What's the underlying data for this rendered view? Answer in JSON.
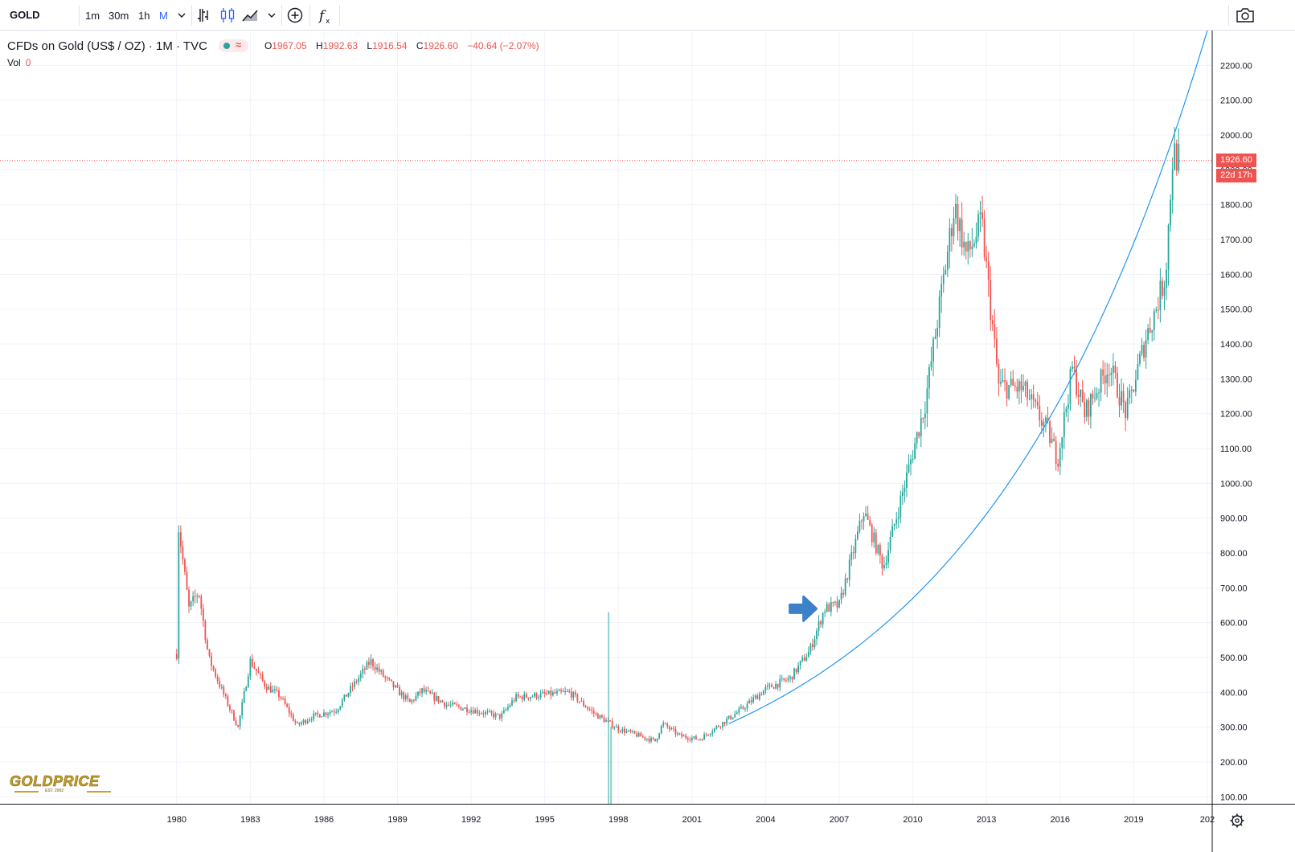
{
  "toolbar": {
    "symbol": "GOLD",
    "intervals": [
      "1m",
      "30m",
      "1h",
      "M"
    ],
    "active_interval": "M",
    "icons": [
      "bar-chart-icon",
      "candlestick-icon",
      "area-chart-icon",
      "add-compare-icon",
      "indicators-icon",
      "camera-icon"
    ]
  },
  "legend": {
    "title": "CFDs on Gold (US$ / OZ) · 1M · TVC",
    "ohlc": [
      {
        "k": "O",
        "v": "1967.05"
      },
      {
        "k": "H",
        "v": "1992.63"
      },
      {
        "k": "L",
        "v": "1916.54"
      },
      {
        "k": "C",
        "v": "1926.60"
      }
    ],
    "change": "−40.64 (−2.07%)",
    "vol_label": "Vol",
    "vol_value": "0"
  },
  "price_tag": {
    "price": "1926.60",
    "countdown": "22d 17h"
  },
  "logo": {
    "text": "GOLDPRICE",
    "est": "EST. 2002"
  },
  "colors": {
    "up": "#26a69a",
    "down": "#ef5350",
    "curve": "#2196f3",
    "arrow": "#3d82c9",
    "grid": "#f0f3fa"
  },
  "chart_data": {
    "type": "candlestick",
    "title": "CFDs on Gold (US$ / OZ) · 1M · TVC",
    "x_tick_labels": [
      "1980",
      "1983",
      "1986",
      "1989",
      "1992",
      "1995",
      "1998",
      "2001",
      "2004",
      "2007",
      "2010",
      "2013",
      "2016",
      "2019",
      "202"
    ],
    "y_tick_labels": [
      "100.00",
      "200.00",
      "300.00",
      "400.00",
      "500.00",
      "600.00",
      "700.00",
      "800.00",
      "900.00",
      "1000.00",
      "1100.00",
      "1200.00",
      "1300.00",
      "1400.00",
      "1500.00",
      "1600.00",
      "1700.00",
      "1800.00",
      "1900.00",
      "2000.00",
      "2100.00",
      "2200.00"
    ],
    "ylim": [
      80,
      2300
    ],
    "xlim": [
      1972.8,
      2022.2
    ],
    "last_price": 1926.6,
    "key_points": [
      {
        "x": 1980.0,
        "y": 510
      },
      {
        "x": 1980.05,
        "y": 680
      },
      {
        "x": 1980.08,
        "y": 875
      },
      {
        "x": 1980.5,
        "y": 640
      },
      {
        "x": 1980.9,
        "y": 690
      },
      {
        "x": 1981.3,
        "y": 500
      },
      {
        "x": 1981.7,
        "y": 430
      },
      {
        "x": 1982.0,
        "y": 380
      },
      {
        "x": 1982.5,
        "y": 300
      },
      {
        "x": 1983.0,
        "y": 490
      },
      {
        "x": 1983.6,
        "y": 420
      },
      {
        "x": 1984.2,
        "y": 390
      },
      {
        "x": 1984.9,
        "y": 305
      },
      {
        "x": 1985.5,
        "y": 330
      },
      {
        "x": 1986.5,
        "y": 350
      },
      {
        "x": 1987.0,
        "y": 400
      },
      {
        "x": 1987.9,
        "y": 490
      },
      {
        "x": 1988.5,
        "y": 440
      },
      {
        "x": 1989.5,
        "y": 370
      },
      {
        "x": 1990.0,
        "y": 405
      },
      {
        "x": 1991.0,
        "y": 365
      },
      {
        "x": 1992.0,
        "y": 350
      },
      {
        "x": 1993.2,
        "y": 330
      },
      {
        "x": 1993.8,
        "y": 385
      },
      {
        "x": 1996.0,
        "y": 400
      },
      {
        "x": 1997.0,
        "y": 340
      },
      {
        "x": 1998.0,
        "y": 295
      },
      {
        "x": 1999.5,
        "y": 260
      },
      {
        "x": 1999.8,
        "y": 310
      },
      {
        "x": 2000.5,
        "y": 275
      },
      {
        "x": 2001.3,
        "y": 265
      },
      {
        "x": 2002.0,
        "y": 300
      },
      {
        "x": 2003.0,
        "y": 350
      },
      {
        "x": 2004.0,
        "y": 410
      },
      {
        "x": 2005.0,
        "y": 440
      },
      {
        "x": 2005.8,
        "y": 520
      },
      {
        "x": 2006.4,
        "y": 640
      },
      {
        "x": 2007.0,
        "y": 650
      },
      {
        "x": 2008.0,
        "y": 920
      },
      {
        "x": 2008.8,
        "y": 760
      },
      {
        "x": 2009.5,
        "y": 950
      },
      {
        "x": 2010.5,
        "y": 1230
      },
      {
        "x": 2011.7,
        "y": 1800
      },
      {
        "x": 2012.2,
        "y": 1650
      },
      {
        "x": 2012.8,
        "y": 1750
      },
      {
        "x": 2013.5,
        "y": 1280
      },
      {
        "x": 2014.5,
        "y": 1270
      },
      {
        "x": 2015.5,
        "y": 1150
      },
      {
        "x": 2015.9,
        "y": 1070
      },
      {
        "x": 2016.5,
        "y": 1330
      },
      {
        "x": 2017.0,
        "y": 1200
      },
      {
        "x": 2018.0,
        "y": 1340
      },
      {
        "x": 2018.7,
        "y": 1200
      },
      {
        "x": 2019.5,
        "y": 1420
      },
      {
        "x": 2019.9,
        "y": 1500
      },
      {
        "x": 2020.3,
        "y": 1600
      },
      {
        "x": 2020.6,
        "y": 1950
      },
      {
        "x": 2020.9,
        "y": 1926.6
      }
    ],
    "trend_curve": {
      "x_start": 2002.5,
      "y_start": 310,
      "x_end": 2022.0,
      "y_end": 2300
    },
    "annotation": {
      "type": "arrow",
      "x": 2006.2,
      "y": 640
    }
  }
}
